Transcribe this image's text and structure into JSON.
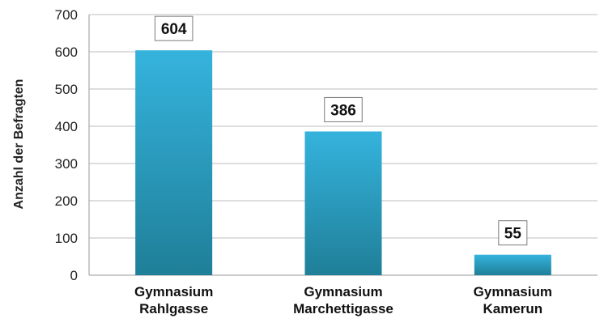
{
  "chart_data": {
    "type": "bar",
    "categories": [
      [
        "Gymnasium",
        "Rahlgasse"
      ],
      [
        "Gymnasium",
        "Marchettigasse"
      ],
      [
        "Gymnasium",
        "Kamerun"
      ]
    ],
    "values": [
      604,
      386,
      55
    ],
    "data_labels": [
      "604",
      "386",
      "55"
    ],
    "ylabel": "Anzahl der Befragten",
    "ylim": [
      0,
      700
    ],
    "yticks": [
      0,
      100,
      200,
      300,
      400,
      500,
      600,
      700
    ],
    "ytick_labels": [
      "0",
      "100",
      "200",
      "300",
      "400",
      "500",
      "600",
      "700"
    ],
    "grid": true,
    "legend": "none",
    "colors": {
      "bar_top": "#35b3dd",
      "bar_bottom": "#1f7f98",
      "grid": "#bdbdbd"
    }
  }
}
